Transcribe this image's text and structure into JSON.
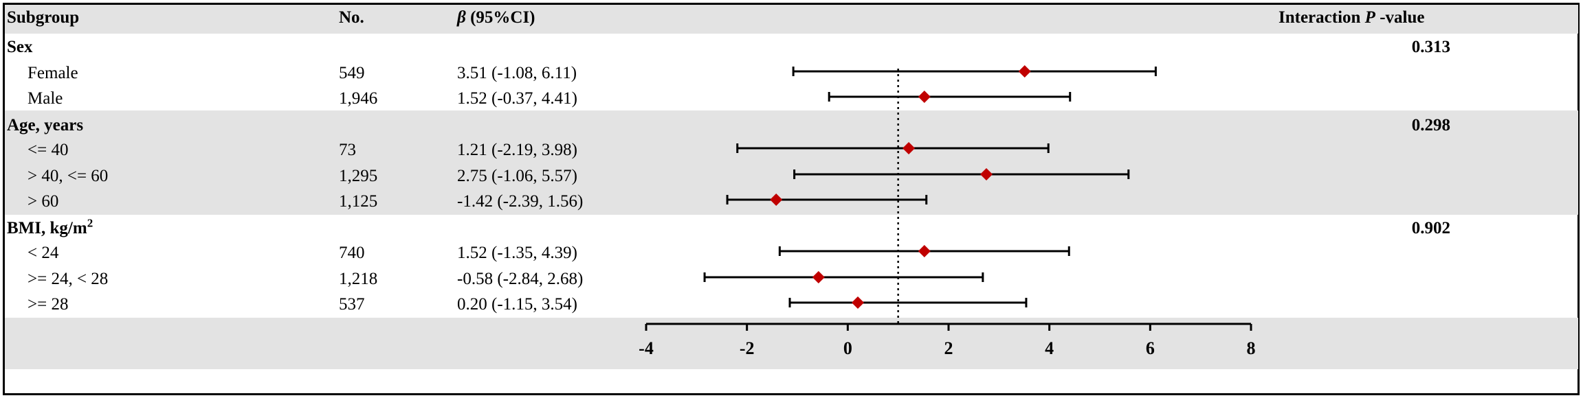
{
  "header": {
    "subgroup": "Subgroup",
    "no": "No.",
    "beta_symbol": "β",
    "beta_rest": " (95%CI)",
    "interaction_prefix": "Interaction ",
    "interaction_p": "P",
    "interaction_suffix": " -value"
  },
  "groups": [
    {
      "label": "Sex",
      "label_sup": "",
      "p_value": "0.313",
      "rows": [
        {
          "label": "Female",
          "n": "549",
          "ci_text": "3.51 (-1.08, 6.11)"
        },
        {
          "label": "Male",
          "n": "1,946",
          "ci_text": "1.52 (-0.37, 4.41)"
        }
      ]
    },
    {
      "label": "Age, years",
      "label_sup": "",
      "p_value": "0.298",
      "rows": [
        {
          "label": "<= 40",
          "n": "73",
          "ci_text": "1.21 (-2.19, 3.98)"
        },
        {
          "label": "> 40, <= 60",
          "n": "1,295",
          "ci_text": "2.75 (-1.06, 5.57)"
        },
        {
          "label": "> 60",
          "n": "1,125",
          "ci_text": "-1.42 (-2.39, 1.56)"
        }
      ]
    },
    {
      "label": "BMI, kg/m",
      "label_sup": "2",
      "p_value": "0.902",
      "rows": [
        {
          "label": "< 24",
          "n": "740",
          "ci_text": "1.52 (-1.35, 4.39)"
        },
        {
          "label": ">= 24, < 28",
          "n": "1,218",
          "ci_text": "-0.58 (-2.84, 2.68)"
        },
        {
          "label": ">= 28",
          "n": "537",
          "ci_text": "0.20 (-1.15, 3.54)"
        }
      ]
    }
  ],
  "chart_data": {
    "type": "forest",
    "x_ticks": [
      -4,
      -2,
      0,
      2,
      4,
      6,
      8
    ],
    "xlim": [
      -4,
      8
    ],
    "reference_line": 1,
    "marker_color": "#c00000",
    "series": [
      {
        "label": "Female",
        "estimate": 3.51,
        "lower": -1.08,
        "upper": 6.11
      },
      {
        "label": "Male",
        "estimate": 1.52,
        "lower": -0.37,
        "upper": 4.41
      },
      {
        "label": "<= 40",
        "estimate": 1.21,
        "lower": -2.19,
        "upper": 3.98
      },
      {
        "label": "> 40, <= 60",
        "estimate": 2.75,
        "lower": -1.06,
        "upper": 5.57
      },
      {
        "label": "> 60",
        "estimate": -1.42,
        "lower": -2.39,
        "upper": 1.56
      },
      {
        "label": "< 24",
        "estimate": 1.52,
        "lower": -1.35,
        "upper": 4.39
      },
      {
        "label": ">= 24, < 28",
        "estimate": -0.58,
        "lower": -2.84,
        "upper": 2.68
      },
      {
        "label": ">= 28",
        "estimate": 0.2,
        "lower": -1.15,
        "upper": 3.54
      }
    ]
  },
  "colors": {
    "band": "#e3e3e3",
    "marker": "#c00000",
    "line": "#000000"
  }
}
